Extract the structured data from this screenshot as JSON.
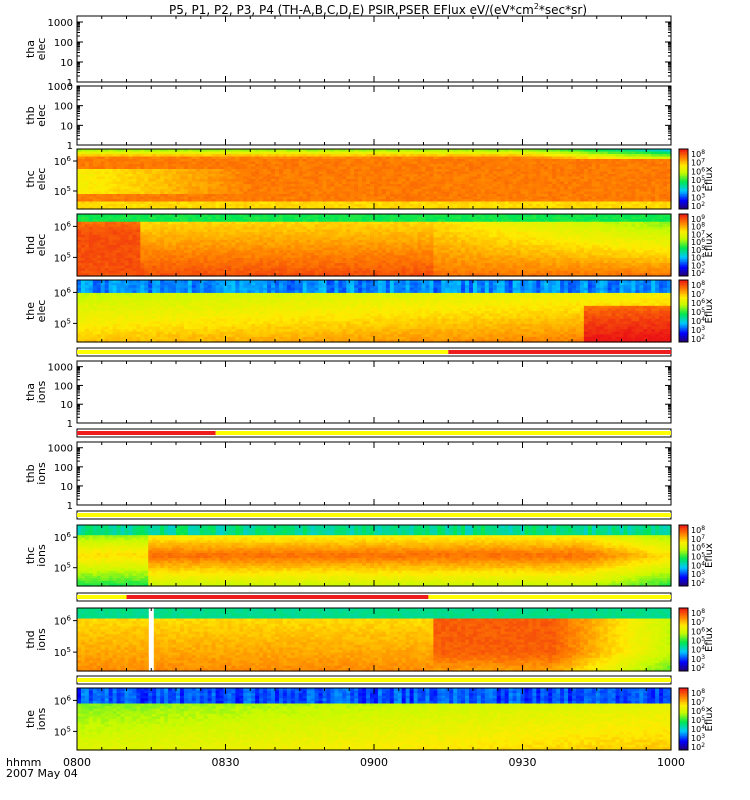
{
  "chart_data": {
    "type": "heatmap",
    "title": "P5, P1, P2, P3, P4 (TH-A,B,C,D,E) PSIR,PSER EFlux eV/(eV*cm^2*sec*sr)",
    "title_parts": {
      "prefix": "P5, P1, P2, P3, P4 (TH-A,B,C,D,E) PSIR,PSER EFlux eV/(eV*cm",
      "sup": "2",
      "suffix": "*sec*sr)"
    },
    "xaxis": {
      "label_line1": "hhmm",
      "label_line2": "2007 May 04",
      "ticks": [
        "0800",
        "0830",
        "0900",
        "0930",
        "1000"
      ],
      "range_minutes": [
        0,
        120
      ]
    },
    "colorbar_label": "Eflux",
    "panels": [
      {
        "id": "tha-elec",
        "label": [
          "tha",
          "elec"
        ],
        "kind": "empty",
        "yticks": [
          "1",
          "10",
          "100",
          "1000"
        ],
        "ylim": [
          1,
          2000
        ]
      },
      {
        "id": "thb-elec",
        "label": [
          "thb",
          "elec"
        ],
        "kind": "empty",
        "yticks": [
          "1",
          "10",
          "100",
          "1000"
        ],
        "ylim": [
          1,
          1000
        ]
      },
      {
        "id": "thc-elec",
        "label": [
          "thc",
          "elec"
        ],
        "kind": "spec",
        "variant": "c_elec",
        "yticks": [
          {
            "b": "10",
            "e": "5"
          },
          {
            "b": "10",
            "e": "6"
          }
        ],
        "cbar": [
          "2",
          "3",
          "4",
          "5",
          "6",
          "7",
          "8"
        ]
      },
      {
        "id": "thd-elec",
        "label": [
          "thd",
          "elec"
        ],
        "kind": "spec",
        "variant": "d_elec",
        "yticks": [
          {
            "b": "10",
            "e": "5"
          },
          {
            "b": "10",
            "e": "6"
          }
        ],
        "cbar": [
          "2",
          "3",
          "4",
          "5",
          "6",
          "7",
          "8",
          "9"
        ]
      },
      {
        "id": "the-elec",
        "label": [
          "the",
          "elec"
        ],
        "kind": "spec",
        "variant": "e_elec",
        "yticks": [
          {
            "b": "10",
            "e": "5"
          },
          {
            "b": "10",
            "e": "6"
          }
        ],
        "cbar": [
          "2",
          "3",
          "4",
          "5",
          "6",
          "7",
          "8"
        ]
      },
      {
        "id": "tha-ions",
        "label": [
          "tha",
          "ions"
        ],
        "kind": "empty",
        "yticks": [
          "1",
          "10",
          "100",
          "1000"
        ],
        "ylim": [
          1,
          2000
        ]
      },
      {
        "id": "thb-ions",
        "label": [
          "thb",
          "ions"
        ],
        "kind": "empty",
        "yticks": [
          "1",
          "10",
          "100",
          "1000"
        ],
        "ylim": [
          1,
          2000
        ]
      },
      {
        "id": "thc-ions",
        "label": [
          "thc",
          "ions"
        ],
        "kind": "spec",
        "variant": "c_ions",
        "yticks": [
          {
            "b": "10",
            "e": "5"
          },
          {
            "b": "10",
            "e": "6"
          }
        ],
        "cbar": [
          "2",
          "3",
          "4",
          "5",
          "6",
          "7",
          "8"
        ]
      },
      {
        "id": "thd-ions",
        "label": [
          "thd",
          "ions"
        ],
        "kind": "spec",
        "variant": "d_ions",
        "yticks": [
          {
            "b": "10",
            "e": "5"
          },
          {
            "b": "10",
            "e": "6"
          }
        ],
        "cbar": [
          "2",
          "3",
          "4",
          "5",
          "6",
          "7",
          "8"
        ]
      },
      {
        "id": "the-ions",
        "label": [
          "the",
          "ions"
        ],
        "kind": "spec",
        "variant": "e_ions",
        "yticks": [
          {
            "b": "10",
            "e": "5"
          },
          {
            "b": "10",
            "e": "6"
          }
        ],
        "cbar": [
          "2",
          "3",
          "4",
          "5",
          "6",
          "7",
          "8"
        ]
      }
    ],
    "mode_bars": [
      {
        "id": "mode-bar-1",
        "segments": [
          {
            "from": 0,
            "to": 75,
            "color": "#ffff00"
          },
          {
            "from": 75,
            "to": 120,
            "color": "#ee1c1c"
          }
        ]
      },
      {
        "id": "mode-bar-2",
        "segments": [
          {
            "from": 0,
            "to": 28,
            "color": "#ee1c1c"
          },
          {
            "from": 28,
            "to": 120,
            "color": "#ffff00"
          }
        ]
      },
      {
        "id": "mode-bar-3",
        "segments": [
          {
            "from": 0,
            "to": 120,
            "color": "#ffff00"
          }
        ]
      },
      {
        "id": "mode-bar-4",
        "segments": [
          {
            "from": 0,
            "to": 10,
            "color": "#ffff00"
          },
          {
            "from": 10,
            "to": 71,
            "color": "#ee1c1c"
          },
          {
            "from": 71,
            "to": 120,
            "color": "#ffff00"
          }
        ]
      },
      {
        "id": "mode-bar-5",
        "segments": [
          {
            "from": 0,
            "to": 120,
            "color": "#ffff00"
          }
        ]
      }
    ]
  }
}
